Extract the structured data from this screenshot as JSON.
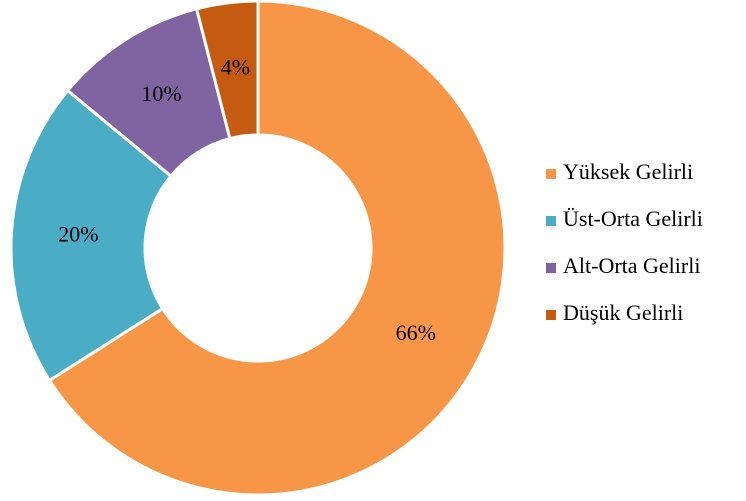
{
  "chart_data": {
    "type": "donut",
    "categories": [
      "Yüksek Gelirli",
      "Üst-Orta Gelirli",
      "Alt-Orta Gelirli",
      "Düşük Gelirli"
    ],
    "values": [
      66,
      20,
      10,
      4
    ],
    "value_labels": [
      "66%",
      "20%",
      "10%",
      "4%"
    ],
    "colors": [
      "#F79646",
      "#4BACC6",
      "#8064A2",
      "#C55A11"
    ],
    "legend": "right"
  }
}
